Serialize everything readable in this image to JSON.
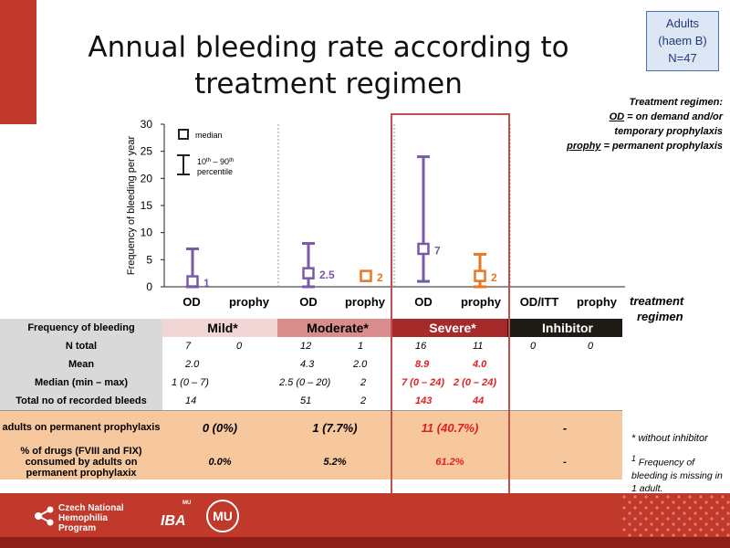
{
  "title": "Annual bleeding rate according to treatment regimen",
  "adults_box": {
    "line1": "Adults",
    "line2": "(haem B)",
    "line3": "N=47"
  },
  "regimen_note": {
    "line1": "Treatment regimen:",
    "od_term": "OD",
    "od_def_a": " = on demand and/or",
    "od_def_b": "temporary prophylaxis",
    "prophy_term": "prophy",
    "prophy_def": " = permanent prophylaxis"
  },
  "legend": {
    "median_label": "median",
    "range_label_a": "10",
    "range_sup_a": "th",
    "range_dash": " – 90",
    "range_sup_b": "th",
    "range_label_b": "percentile"
  },
  "x_axis_label_a": "treatment",
  "x_axis_label_b": "regimen",
  "colors": {
    "od": "#7a5aa6",
    "prophy": "#e87722",
    "accent": "#c0392b"
  },
  "chart_data": {
    "type": "scatter",
    "title": "",
    "ylabel": "Frequency of bleeding per year",
    "ylim": [
      0,
      30
    ],
    "yticks": [
      0,
      5,
      10,
      15,
      20,
      25,
      30
    ],
    "categories": [
      "OD",
      "prophy",
      "OD",
      "prophy",
      "OD",
      "prophy",
      "OD/ITT",
      "prophy"
    ],
    "groups": [
      "Mild*",
      "Moderate*",
      "Severe*",
      "Inhibitor"
    ],
    "series": [
      {
        "group": "Mild*",
        "regimen": "OD",
        "median": 1,
        "low": 0,
        "high": 7,
        "label": "1",
        "color": "#7a5aa6"
      },
      {
        "group": "Moderate*",
        "regimen": "OD",
        "median": 2.5,
        "low": 0,
        "high": 8,
        "label": "2.5",
        "color": "#7a5aa6"
      },
      {
        "group": "Moderate*",
        "regimen": "prophy",
        "median": 2,
        "low": 2,
        "high": 2,
        "label": "2",
        "color": "#e87722"
      },
      {
        "group": "Severe*",
        "regimen": "OD",
        "median": 7,
        "low": 1,
        "high": 24,
        "label": "7",
        "color": "#7a5aa6"
      },
      {
        "group": "Severe*",
        "regimen": "prophy",
        "median": 2,
        "low": 0,
        "high": 6,
        "label": "2",
        "color": "#e87722"
      }
    ]
  },
  "table": {
    "header_label": "Frequency of bleeding",
    "groups": [
      "Mild*",
      "Moderate*",
      "Severe*",
      "Inhibitor"
    ],
    "rows": [
      {
        "label": "N total",
        "cells": [
          "7",
          "0",
          "12",
          "1",
          "16",
          "11",
          "0",
          "0"
        ]
      },
      {
        "label": "Mean",
        "cells": [
          "2.0",
          "",
          "4.3",
          "2.0",
          "8.9",
          "4.0",
          "",
          ""
        ]
      },
      {
        "label": "Median (min – max)",
        "cells": [
          "1 (0 – 7)",
          "",
          "2.5 (0 – 20)",
          "2",
          "7 (0 – 24)",
          "2 (0 – 24)",
          "",
          ""
        ]
      },
      {
        "label": "Total no of recorded bleeds",
        "cells": [
          "14",
          "",
          "51",
          "2",
          "143",
          "44",
          "",
          ""
        ]
      }
    ],
    "perm_label": "adults on permanent prophylaxis",
    "perm_values": [
      "0 (0%)",
      "1 (7.7%)",
      "11 (40.7%)",
      "-"
    ],
    "drugs_label": "% of drugs (FVIII and FIX) consumed by adults on permanent prophylaxix",
    "drugs_values": [
      "0.0%",
      "5.2%",
      "61.2%",
      "-"
    ]
  },
  "footnotes": {
    "note1": "* without inhibitor",
    "note2_sup": "1",
    "note2": " Frequency of bleeding is missing in 1 adult."
  },
  "footer": {
    "program_name": "Czech National Hemophilia Program",
    "iba": "IBA",
    "mu": "MU",
    "seal": "MU"
  }
}
